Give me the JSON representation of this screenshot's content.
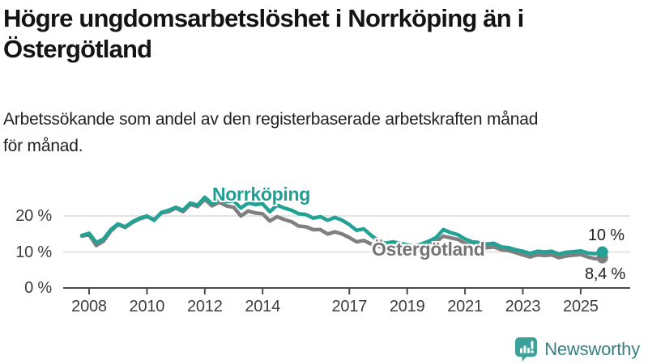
{
  "title": {
    "line1": "Högre ungdomsarbetslöshet i Norrköping än i",
    "line2": "Östergötland"
  },
  "subtitle": {
    "line1": "Arbetssökande som andel av den registerbaserade arbetskraften månad",
    "line2": "för månad."
  },
  "chart_data": {
    "type": "line",
    "title": "Högre ungdomsarbetslöshet i Norrköping än i Östergötland",
    "xlabel": "",
    "ylabel": "Arbetssökande som andel av den registerbaserade arbetskraften",
    "unit": "%",
    "grid": "horizontal",
    "legend_position": "inline-labels",
    "x_start": 2007.75,
    "x_step_years": 0.25,
    "x_range": [
      2007.75,
      2025.75
    ],
    "ylim": [
      0,
      27
    ],
    "y_ticks": [
      0,
      10,
      20
    ],
    "y_tick_labels": [
      "0 %",
      "10 %",
      "20 %"
    ],
    "x_tick_years": [
      2008,
      2010,
      2012,
      2014,
      2017,
      2019,
      2021,
      2023,
      2025
    ],
    "x_tick_labels": [
      "2008",
      "2010",
      "2012",
      "2014",
      "2017",
      "2019",
      "2021",
      "2023",
      "2025"
    ],
    "series": [
      {
        "name": "Norrköping",
        "color": "#21a295",
        "label_color": "#1f9e93",
        "end_label": "10 %",
        "end_value": 10.0,
        "values": [
          14.6,
          15.2,
          12.6,
          13.6,
          16.2,
          17.8,
          17.0,
          18.4,
          19.4,
          20.0,
          18.8,
          21.0,
          21.6,
          22.4,
          21.6,
          23.6,
          23.0,
          25.2,
          23.4,
          24.6,
          24.0,
          24.2,
          22.2,
          23.6,
          23.2,
          23.4,
          21.2,
          23.0,
          22.2,
          21.6,
          20.6,
          20.4,
          19.4,
          19.8,
          18.8,
          19.6,
          18.8,
          17.6,
          16.0,
          16.4,
          14.6,
          13.2,
          12.4,
          12.8,
          12.4,
          12.0,
          11.6,
          12.2,
          13.0,
          14.0,
          16.2,
          15.4,
          14.8,
          13.6,
          12.8,
          12.6,
          12.2,
          12.4,
          11.4,
          11.2,
          10.6,
          10.2,
          9.6,
          10.2,
          10.0,
          10.2,
          9.4,
          9.9,
          10.1,
          10.3,
          9.7,
          9.5,
          10.0
        ]
      },
      {
        "name": "Östergötland",
        "color": "#7f7f7f",
        "label_color": "#747474",
        "end_label": "8,4 %",
        "end_value": 8.4,
        "values": [
          14.4,
          14.8,
          11.8,
          13.0,
          15.8,
          17.6,
          16.8,
          18.2,
          19.2,
          19.8,
          19.0,
          20.8,
          21.2,
          22.2,
          21.2,
          23.2,
          22.6,
          24.6,
          22.8,
          23.8,
          22.8,
          22.4,
          20.0,
          21.4,
          20.8,
          20.6,
          18.6,
          19.8,
          19.0,
          18.4,
          17.2,
          17.0,
          16.2,
          16.2,
          15.0,
          15.6,
          15.0,
          14.0,
          12.8,
          13.2,
          12.2,
          11.6,
          11.0,
          11.4,
          11.2,
          11.2,
          10.8,
          11.4,
          12.0,
          12.8,
          14.4,
          13.9,
          13.5,
          12.4,
          11.8,
          11.6,
          11.2,
          11.4,
          10.6,
          10.4,
          9.8,
          9.2,
          8.6,
          9.2,
          9.0,
          9.2,
          8.4,
          8.9,
          9.1,
          9.3,
          8.6,
          8.1,
          8.4
        ]
      }
    ]
  },
  "colors": {
    "grid": "#dcdcdc",
    "axis": "#4c4c4c",
    "axis_text": "#3d3d3d",
    "logo_icon_teal": "#3da19b",
    "logo_text_teal": "#377f7c"
  },
  "logo": {
    "text": "Newsworthy",
    "icon": "bar-chart-speech-bubble-icon"
  }
}
